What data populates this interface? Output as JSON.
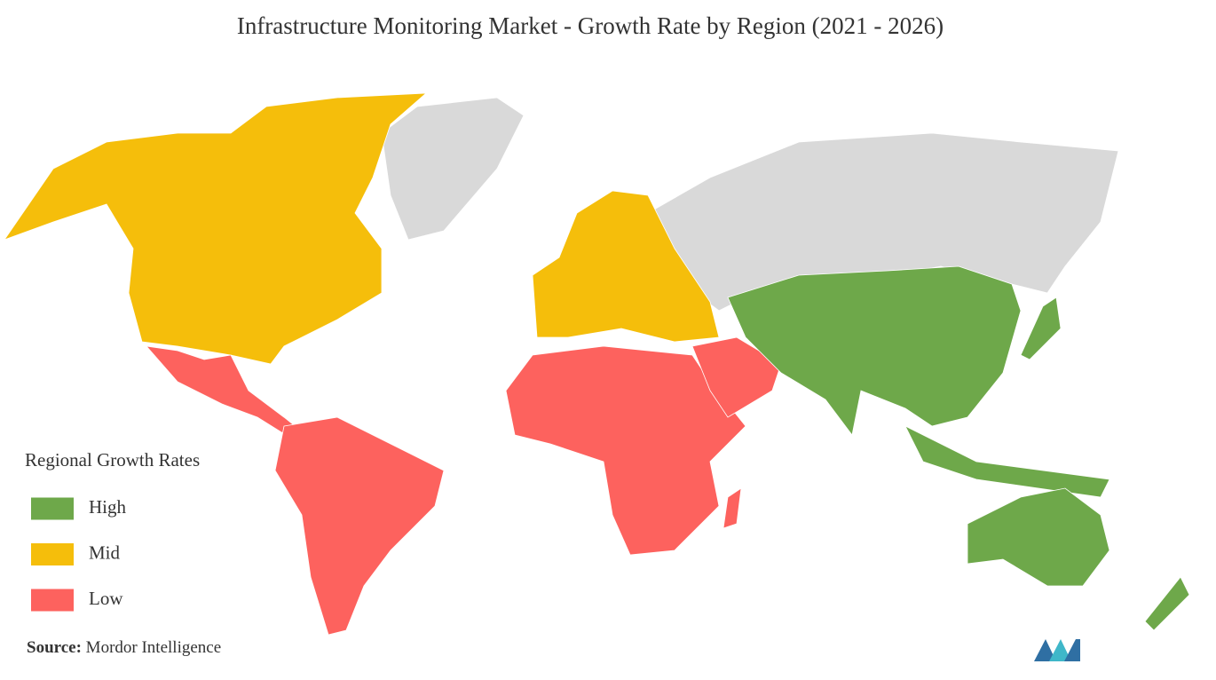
{
  "header": {
    "title": "Infrastructure Monitoring Market - Growth Rate by Region (2021 - 2026)"
  },
  "legend": {
    "title": "Regional Growth Rates",
    "items": [
      {
        "label": "High",
        "color": "#6ea84a"
      },
      {
        "label": "Mid",
        "color": "#f5be0b"
      },
      {
        "label": "Low",
        "color": "#fd625e"
      }
    ]
  },
  "source": {
    "label": "Source:",
    "text": "Mordor Intelligence"
  }
}
